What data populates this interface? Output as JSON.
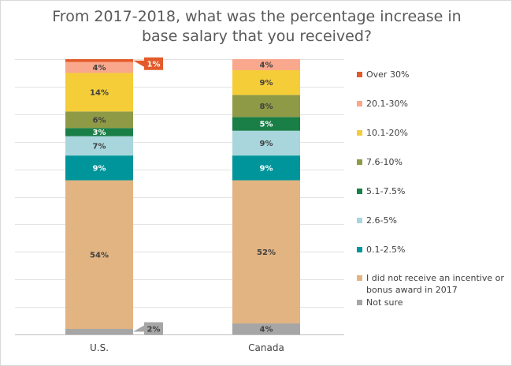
{
  "chart_data": {
    "type": "bar",
    "stacked": true,
    "title": "From 2017-2018, what was the percentage increase in base salary that you received?",
    "title_lines": [
      "From 2017-2018, what was the percentage increase in",
      "base salary that you received?"
    ],
    "categories": [
      "U.S.",
      "Canada"
    ],
    "ylim": [
      0,
      100
    ],
    "grid": true,
    "legend_position": "right",
    "series": [
      {
        "name": "Not sure",
        "color": "#a6a6a6",
        "values": [
          2,
          4
        ],
        "labels": [
          "2%",
          "4%"
        ]
      },
      {
        "name": "I did not receive an incentive or bonus award in 2017",
        "color": "#e2b482",
        "values": [
          54,
          52
        ],
        "labels": [
          "54%",
          "52%"
        ]
      },
      {
        "name": "0.1-2.5%",
        "color": "#00959b",
        "values": [
          9,
          9
        ],
        "labels": [
          "9%",
          "9%"
        ]
      },
      {
        "name": "2.6-5%",
        "color": "#a8d6dc",
        "values": [
          7,
          9
        ],
        "labels": [
          "7%",
          "9%"
        ]
      },
      {
        "name": "5.1-7.5%",
        "color": "#1a7f47",
        "values": [
          3,
          5
        ],
        "labels": [
          "3%",
          "5%"
        ]
      },
      {
        "name": "7.6-10%",
        "color": "#8e9a46",
        "values": [
          6,
          8
        ],
        "labels": [
          "6%",
          "8%"
        ]
      },
      {
        "name": "10.1-20%",
        "color": "#f5cd38",
        "values": [
          14,
          9
        ],
        "labels": [
          "14%",
          "9%"
        ]
      },
      {
        "name": "20.1-30%",
        "color": "#f9a78d",
        "values": [
          4,
          4
        ],
        "labels": [
          "4%",
          "4%"
        ]
      },
      {
        "name": "Over 30%",
        "color": "#e35b2a",
        "values": [
          1,
          0
        ],
        "labels": [
          "1%",
          ""
        ]
      }
    ],
    "legend_order": [
      "Over 30%",
      "20.1-30%",
      "10.1-20%",
      "7.6-10%",
      "5.1-7.5%",
      "2.6-5%",
      "0.1-2.5%",
      "I did not receive an incentive or bonus award in 2017",
      "Not sure"
    ],
    "callouts": [
      {
        "category": "U.S.",
        "series": "Over 30%",
        "text": "1%",
        "color": "#e35b2a"
      },
      {
        "category": "U.S.",
        "series": "Not sure",
        "text": "2%",
        "color": "#a6a6a6"
      }
    ]
  }
}
